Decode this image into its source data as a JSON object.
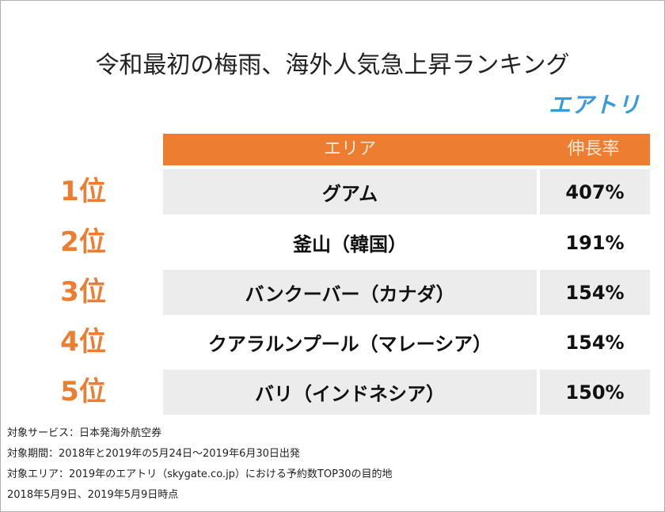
{
  "header": {
    "title": "令和最初の梅雨、海外人気急上昇ランキング",
    "logo": "エアトリ"
  },
  "table": {
    "columns": [
      "エリア",
      "伸長率"
    ],
    "rows": [
      {
        "rank": "1位",
        "area": "グアム",
        "rate": "407%"
      },
      {
        "rank": "2位",
        "area": "釜山（韓国）",
        "rate": "191%"
      },
      {
        "rank": "3位",
        "area": "バンクーバー（カナダ）",
        "rate": "154%"
      },
      {
        "rank": "4位",
        "area": "クアラルンプール（マレーシア）",
        "rate": "154%"
      },
      {
        "rank": "5位",
        "area": "バリ（インドネシア）",
        "rate": "150%"
      }
    ]
  },
  "notes": [
    "対象サービス：日本発海外航空券",
    "対象期間：2018年と2019年の5月24日～2019年6月30日出発",
    "対象エリア：2019年のエアトリ（skygate.co.jp）における予約数TOP30の目的地",
    "2018年5月9日、2019年5月9日時点"
  ]
}
